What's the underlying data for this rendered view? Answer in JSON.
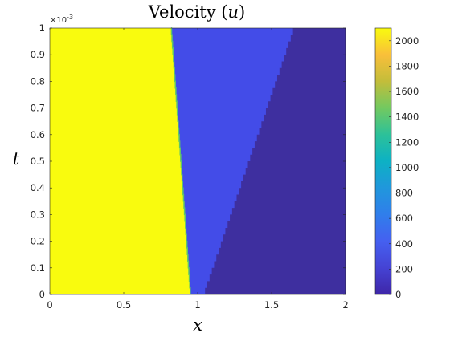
{
  "chart_data": {
    "type": "heatmap",
    "title": "Velocity (u)",
    "title_text": "Velocity",
    "title_var": "u",
    "xlabel": "x",
    "ylabel": "t",
    "x_exponent_label": "×10",
    "x_exponent_power": "-3",
    "xlim": [
      0,
      2
    ],
    "ylim": [
      0,
      0.001
    ],
    "xticks": [
      "0",
      "0.5",
      "1",
      "1.5",
      "2"
    ],
    "yticks": [
      "0",
      "0.1",
      "0.2",
      "0.3",
      "0.4",
      "0.5",
      "0.6",
      "0.7",
      "0.8",
      "0.9",
      "1"
    ],
    "colorbar": {
      "colormap": "parula",
      "range": [
        0,
        2100
      ],
      "ticks": [
        "0",
        "200",
        "400",
        "600",
        "800",
        "1000",
        "1200",
        "1400",
        "1600",
        "1800",
        "2000"
      ]
    },
    "regions": [
      {
        "value": 2100,
        "color": "#f9fb0e",
        "desc": "left state"
      },
      {
        "value": 400,
        "color": "#434ce8",
        "desc": "intermediate state"
      },
      {
        "value": 100,
        "color": "#3e2f9f",
        "desc": "right state"
      }
    ],
    "boundary_left": {
      "t": [
        0,
        0.001
      ],
      "x": [
        0.95,
        0.82
      ]
    },
    "boundary_right": {
      "t": [
        0,
        0.001
      ],
      "x": [
        1.05,
        1.66
      ]
    }
  }
}
